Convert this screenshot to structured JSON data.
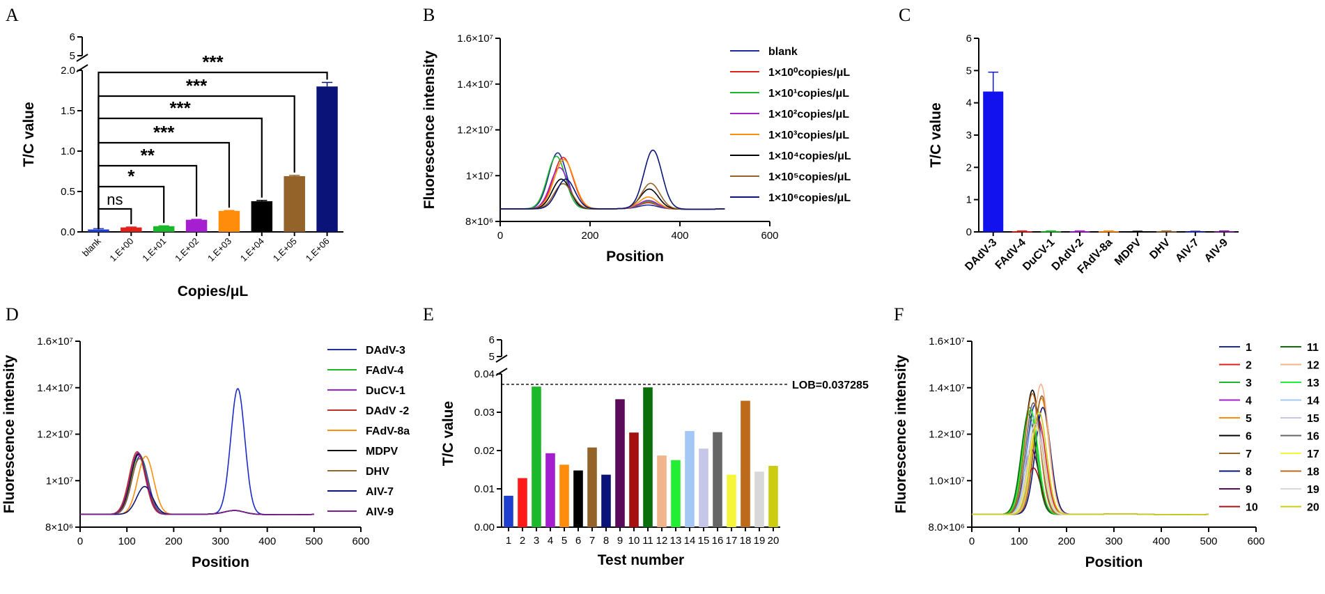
{
  "panel_labels": [
    "A",
    "B",
    "C",
    "D",
    "E",
    "F"
  ],
  "chart_data": [
    {
      "panel": "A",
      "type": "bar",
      "xlabel": "Copies/μL",
      "ylabel": "T/C value",
      "ylim_lower": [
        0,
        2.0
      ],
      "ylim_upper": [
        5,
        6
      ],
      "yticks_lower": [
        "0.0",
        "0.5",
        "1.0",
        "1.5",
        "2.0"
      ],
      "yticks_upper": [
        "5",
        "6"
      ],
      "categories": [
        "blank",
        "1.E+00",
        "1.E+01",
        "1.E+02",
        "1.E+03",
        "1.E+04",
        "1.E+05",
        "1.E+06"
      ],
      "values": [
        0.03,
        0.055,
        0.07,
        0.15,
        0.26,
        0.38,
        0.69,
        1.8
      ],
      "errors": [
        0.01,
        0.005,
        0.005,
        0.005,
        0.005,
        0.01,
        0.01,
        0.05
      ],
      "colors": [
        "#1f3fcf",
        "#e0201b",
        "#1bb82b",
        "#a51ecf",
        "#ff8c0a",
        "#000000",
        "#94632a",
        "#0a1478"
      ],
      "significance": [
        {
          "from": "blank",
          "to": "1.E+00",
          "label": "ns"
        },
        {
          "from": "blank",
          "to": "1.E+01",
          "label": "*"
        },
        {
          "from": "blank",
          "to": "1.E+02",
          "label": "**"
        },
        {
          "from": "blank",
          "to": "1.E+03",
          "label": "***"
        },
        {
          "from": "blank",
          "to": "1.E+04",
          "label": "***"
        },
        {
          "from": "blank",
          "to": "1.E+05",
          "label": "***"
        },
        {
          "from": "blank",
          "to": "1.E+06",
          "label": "***"
        }
      ]
    },
    {
      "panel": "B",
      "type": "line",
      "xlabel": "Position",
      "ylabel": "Fluorescence intensity",
      "xlim": [
        0,
        600
      ],
      "xticks": [
        "0",
        "200",
        "400",
        "600"
      ],
      "ylim": [
        8000000,
        16000000
      ],
      "yticks": [
        "8×10⁶",
        "1×10⁷",
        "1.2×10⁷",
        "1.4×10⁷",
        "1.6×10⁷"
      ],
      "series": [
        {
          "name": "blank",
          "color": "#1b2a9e",
          "peak1": [
            128,
            10950000,
            20
          ],
          "peak2": [
            330,
            8650000,
            20
          ]
        },
        {
          "name": "1×10⁰copies/μL",
          "color": "#e0201b",
          "peak1": [
            140,
            10750000,
            22
          ],
          "peak2": [
            330,
            8750000,
            20
          ]
        },
        {
          "name": "1×10¹copies/μL",
          "color": "#1bb82b",
          "peak1": [
            125,
            10800000,
            20
          ],
          "peak2": [
            330,
            8800000,
            20
          ]
        },
        {
          "name": "1×10²copies/μL",
          "color": "#a51ecf",
          "peak1": [
            132,
            10300000,
            20
          ],
          "peak2": [
            330,
            8850000,
            20
          ]
        },
        {
          "name": "1×10³copies/μL",
          "color": "#ff8c0a",
          "peak1": [
            142,
            10650000,
            22
          ],
          "peak2": [
            330,
            9000000,
            20
          ]
        },
        {
          "name": "1×10⁴copies/μL",
          "color": "#000000",
          "peak1": [
            136,
            9800000,
            20
          ],
          "peak2": [
            332,
            9350000,
            20
          ]
        },
        {
          "name": "1×10⁵copies/μL",
          "color": "#94632a",
          "peak1": [
            140,
            9600000,
            20
          ],
          "peak2": [
            335,
            9600000,
            20
          ]
        },
        {
          "name": "1×10⁶copies/μL",
          "color": "#0a1478",
          "peak1": [
            146,
            9800000,
            20
          ],
          "peak2": [
            340,
            11050000,
            20
          ]
        }
      ]
    },
    {
      "panel": "C",
      "type": "bar",
      "ylabel": "T/C value",
      "ylim": [
        0,
        6
      ],
      "yticks": [
        "0",
        "1",
        "2",
        "3",
        "4",
        "5",
        "6"
      ],
      "categories": [
        "DAdV-3",
        "FAdV-4",
        "DuCV-1",
        "DAdV-2",
        "FAdV-8a",
        "MDPV",
        "DHV",
        "AIV-7",
        "AIV-9"
      ],
      "values": [
        4.35,
        0.02,
        0.02,
        0.02,
        0.02,
        0.01,
        0.02,
        0.01,
        0.02
      ],
      "errors": [
        0.6,
        0.01,
        0.01,
        0.01,
        0.01,
        0.01,
        0.01,
        0.01,
        0.01
      ],
      "colors": [
        "#1212ee",
        "#e0201b",
        "#1bb82b",
        "#a51ecf",
        "#ff8c0a",
        "#000000",
        "#94632a",
        "#1b2a9e",
        "#7a1e8f"
      ]
    },
    {
      "panel": "D",
      "type": "line",
      "xlabel": "Position",
      "ylabel": "Fluorescence intensity",
      "xlim": [
        0,
        600
      ],
      "xticks": [
        "0",
        "100",
        "200",
        "300",
        "400",
        "500",
        "600"
      ],
      "ylim": [
        8000000,
        16000000
      ],
      "yticks": [
        "8×10⁶",
        "1×10⁷",
        "1.2×10⁷",
        "1.4×10⁷",
        "1.6×10⁷"
      ],
      "series": [
        {
          "name": "DAdV-3",
          "color": "#1b2ac9",
          "peak1": [
            128,
            11000000,
            17
          ],
          "peak2": [
            337,
            13900000,
            15
          ]
        },
        {
          "name": "FAdV-4",
          "color": "#1bb82b",
          "peak1": [
            126,
            11100000,
            17
          ],
          "peak2": [
            330,
            8650000,
            20
          ]
        },
        {
          "name": "DuCV-1",
          "color": "#a51ecf",
          "peak1": [
            124,
            11050000,
            17
          ],
          "peak2": [
            330,
            8650000,
            20
          ]
        },
        {
          "name": "DAdV -2",
          "color": "#c0302a",
          "peak1": [
            122,
            11200000,
            17
          ],
          "peak2": [
            330,
            8650000,
            20
          ]
        },
        {
          "name": "FAdV-8a",
          "color": "#ff8c0a",
          "peak1": [
            140,
            11000000,
            17
          ],
          "peak2": [
            330,
            8650000,
            20
          ]
        },
        {
          "name": "MDPV",
          "color": "#000000",
          "peak1": [
            125,
            11100000,
            17
          ],
          "peak2": [
            330,
            8650000,
            20
          ]
        },
        {
          "name": "DHV",
          "color": "#94632a",
          "peak1": [
            127,
            10900000,
            17
          ],
          "peak2": [
            330,
            8650000,
            20
          ]
        },
        {
          "name": "AIV-7",
          "color": "#0a1478",
          "peak1": [
            138,
            9700000,
            17
          ],
          "peak2": [
            330,
            8650000,
            20
          ]
        },
        {
          "name": "AIV-9",
          "color": "#7a1e8f",
          "peak1": [
            124,
            11150000,
            17
          ],
          "peak2": [
            330,
            8650000,
            20
          ]
        }
      ]
    },
    {
      "panel": "E",
      "type": "bar",
      "xlabel": "Test number",
      "ylabel": "T/C value",
      "ylim_lower": [
        0,
        0.04
      ],
      "ylim_upper": [
        5,
        6
      ],
      "yticks_lower": [
        "0.00",
        "0.01",
        "0.02",
        "0.03",
        "0.04"
      ],
      "yticks_upper": [
        "5",
        "6"
      ],
      "lob": 0.037285,
      "lob_label": "LOB=0.037285",
      "categories": [
        "1",
        "2",
        "3",
        "4",
        "5",
        "6",
        "7",
        "8",
        "9",
        "10",
        "11",
        "12",
        "13",
        "14",
        "15",
        "16",
        "17",
        "18",
        "19",
        "20"
      ],
      "values": [
        0.0082,
        0.0128,
        0.0367,
        0.0193,
        0.0163,
        0.0148,
        0.0208,
        0.0137,
        0.0334,
        0.0247,
        0.0365,
        0.0187,
        0.0175,
        0.0251,
        0.0205,
        0.0248,
        0.0137,
        0.033,
        0.0145,
        0.016
      ],
      "colors": [
        "#1f3fcf",
        "#ff1a1a",
        "#1bb82b",
        "#a51ecf",
        "#ff8c0a",
        "#000000",
        "#94632a",
        "#0a1478",
        "#5c0a5a",
        "#a51010",
        "#0a6e0a",
        "#f2b48a",
        "#22ee33",
        "#a3c8f5",
        "#c6c6e8",
        "#666666",
        "#f5f53a",
        "#bd6a1a",
        "#d8d8d8",
        "#cccc10"
      ]
    },
    {
      "panel": "F",
      "type": "line",
      "xlabel": "Position",
      "ylabel": "Fluorescence intensity",
      "xlim": [
        0,
        600
      ],
      "xticks": [
        "0",
        "100",
        "200",
        "300",
        "400",
        "500",
        "600"
      ],
      "ylim": [
        8000000,
        16000000
      ],
      "yticks": [
        "8.0×10⁶",
        "1.0×10⁷",
        "1.2×10⁷",
        "1.4×10⁷",
        "1.6×10⁷"
      ],
      "series": [
        {
          "name": "1",
          "color": "#1b2a9e",
          "peak1": [
            133,
            13200000,
            16
          ]
        },
        {
          "name": "2",
          "color": "#e0201b",
          "peak1": [
            140,
            12600000,
            16
          ]
        },
        {
          "name": "3",
          "color": "#1bb82b",
          "peak1": [
            122,
            13100000,
            16
          ]
        },
        {
          "name": "4",
          "color": "#a51ecf",
          "peak1": [
            135,
            12500000,
            16
          ]
        },
        {
          "name": "5",
          "color": "#ff8c0a",
          "peak1": [
            147,
            13500000,
            16
          ]
        },
        {
          "name": "6",
          "color": "#000000",
          "peak1": [
            128,
            13850000,
            16
          ]
        },
        {
          "name": "7",
          "color": "#94632a",
          "peak1": [
            148,
            13600000,
            16
          ]
        },
        {
          "name": "8",
          "color": "#0a1478",
          "peak1": [
            150,
            13100000,
            16
          ]
        },
        {
          "name": "9",
          "color": "#5c0a5a",
          "peak1": [
            126,
            11300000,
            16
          ]
        },
        {
          "name": "10",
          "color": "#a51010",
          "peak1": [
            130,
            10500000,
            16
          ]
        },
        {
          "name": "11",
          "color": "#0a6e0a",
          "peak1": [
            120,
            12800000,
            16
          ]
        },
        {
          "name": "12",
          "color": "#f2b48a",
          "peak1": [
            146,
            14100000,
            16
          ]
        },
        {
          "name": "13",
          "color": "#22ee33",
          "peak1": [
            124,
            13000000,
            16
          ]
        },
        {
          "name": "14",
          "color": "#a3c8f5",
          "peak1": [
            132,
            12700000,
            16
          ]
        },
        {
          "name": "15",
          "color": "#c6c6e8",
          "peak1": [
            138,
            12300000,
            16
          ]
        },
        {
          "name": "16",
          "color": "#666666",
          "peak1": [
            130,
            13300000,
            16
          ]
        },
        {
          "name": "17",
          "color": "#f5f53a",
          "peak1": [
            136,
            12200000,
            16
          ]
        },
        {
          "name": "18",
          "color": "#bd6a1a",
          "peak1": [
            128,
            13700000,
            16
          ]
        },
        {
          "name": "19",
          "color": "#d8d8d8",
          "peak1": [
            134,
            12400000,
            16
          ]
        },
        {
          "name": "20",
          "color": "#cccc10",
          "peak1": [
            142,
            12900000,
            16
          ]
        }
      ]
    }
  ]
}
